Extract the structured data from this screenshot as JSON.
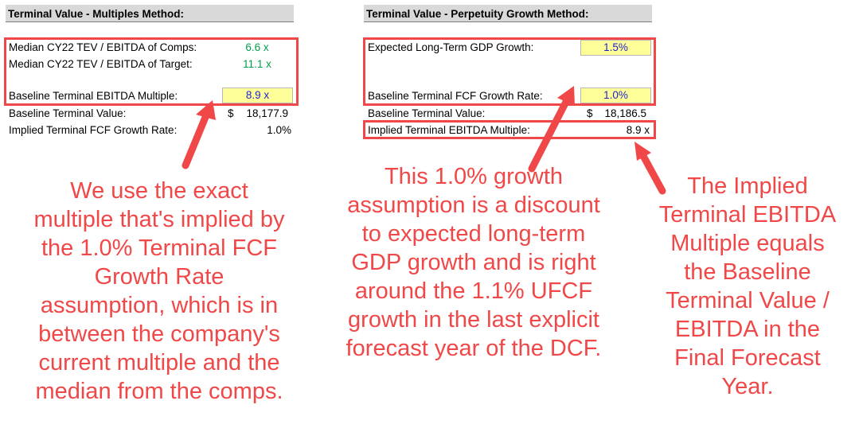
{
  "multiples": {
    "header": "Terminal Value - Multiples Method:",
    "median_comps_label": "Median CY22 TEV / EBITDA of Comps:",
    "median_comps_value": "6.6 x",
    "median_target_label": "Median CY22 TEV / EBITDA of Target:",
    "median_target_value": "11.1 x",
    "baseline_multiple_label": "Baseline Terminal EBITDA Multiple:",
    "baseline_multiple_value": "8.9 x",
    "baseline_tv_label": "Baseline Terminal Value:",
    "baseline_tv_currency": "$",
    "baseline_tv_value": "18,177.9",
    "implied_growth_label": "Implied Terminal FCF Growth Rate:",
    "implied_growth_value": "1.0%"
  },
  "perpetuity": {
    "header": "Terminal Value - Perpetuity Growth Method:",
    "gdp_label": "Expected Long-Term GDP Growth:",
    "gdp_value": "1.5%",
    "fcf_growth_label": "Baseline Terminal FCF Growth Rate:",
    "fcf_growth_value": "1.0%",
    "baseline_tv_label": "Baseline Terminal Value:",
    "baseline_tv_currency": "$",
    "baseline_tv_value": "18,186.5",
    "implied_multiple_label": "Implied Terminal EBITDA Multiple:",
    "implied_multiple_value": "8.9 x"
  },
  "callouts": {
    "left": [
      "We use the exact",
      "multiple that's implied by",
      "the 1.0% Terminal FCF",
      "Growth Rate",
      "assumption, which is in",
      "between the company's",
      "current multiple and the",
      "median from the comps."
    ],
    "middle": [
      "This 1.0% growth",
      "assumption is a discount",
      "to expected long-term",
      "GDP growth and is right",
      "around the 1.1% UFCF",
      "growth in the last explicit",
      "forecast year of the DCF."
    ],
    "right": [
      "The Implied",
      "Terminal EBITDA",
      "Multiple equals",
      "the Baseline",
      "Terminal Value /",
      "EBITDA in the",
      "Final Forecast",
      "Year."
    ]
  },
  "colors": {
    "annotation_red": "#f04848",
    "input_fill": "#ffff99",
    "input_text": "#1f1fd0",
    "linked_value_green": "#00a04a",
    "header_fill": "#d9d9d9"
  }
}
